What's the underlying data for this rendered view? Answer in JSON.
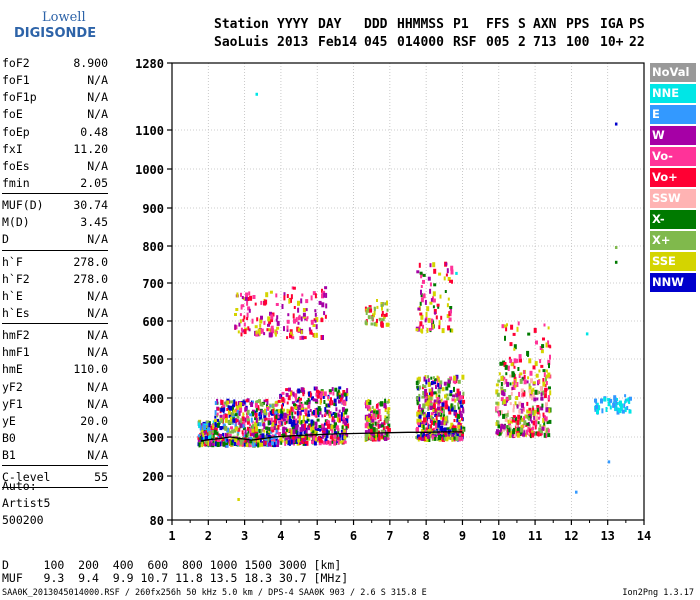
{
  "logo": {
    "line1": "Lowell",
    "line2": "DIGISONDE"
  },
  "header": {
    "row1": [
      "Station",
      "YYYY",
      "DAY",
      "DDD",
      "HHMMSS",
      "P1",
      "FFS",
      "S",
      "AXN",
      "PPS",
      "IGA",
      "PS"
    ],
    "row2": [
      "SaoLuis",
      "2013",
      "Feb14",
      "045",
      "014000",
      "RSF",
      "005",
      "2",
      "713",
      "100",
      "10+",
      "22"
    ]
  },
  "params": {
    "group1": [
      {
        "name": "foF2",
        "value": "8.900"
      },
      {
        "name": "foF1",
        "value": "N/A"
      },
      {
        "name": "foF1p",
        "value": "N/A"
      },
      {
        "name": "foE",
        "value": "N/A"
      },
      {
        "name": "foEp",
        "value": "0.48"
      },
      {
        "name": "fxI",
        "value": "11.20"
      },
      {
        "name": "foEs",
        "value": "N/A"
      },
      {
        "name": "fmin",
        "value": "2.05"
      }
    ],
    "group2": [
      {
        "name": "MUF(D)",
        "value": "30.74"
      },
      {
        "name": "M(D)",
        "value": "3.45"
      },
      {
        "name": "D",
        "value": "N/A"
      }
    ],
    "group3": [
      {
        "name": "h`F",
        "value": "278.0"
      },
      {
        "name": "h`F2",
        "value": "278.0"
      },
      {
        "name": "h`E",
        "value": "N/A"
      },
      {
        "name": "h`Es",
        "value": "N/A"
      }
    ],
    "group4": [
      {
        "name": "hmF2",
        "value": "N/A"
      },
      {
        "name": "hmF1",
        "value": "N/A"
      },
      {
        "name": "hmE",
        "value": "110.0"
      },
      {
        "name": "yF2",
        "value": "N/A"
      },
      {
        "name": "yF1",
        "value": "N/A"
      },
      {
        "name": "yE",
        "value": "20.0"
      },
      {
        "name": "B0",
        "value": "N/A"
      },
      {
        "name": "B1",
        "value": "N/A"
      }
    ],
    "group5": [
      {
        "name": "C-level",
        "value": "55"
      }
    ]
  },
  "auto": {
    "line1": "Auto:",
    "line2": "Artist5",
    "line3": "500200"
  },
  "footer": {
    "d_row": "D     100  200  400  600  800 1000 1500 3000 [km]",
    "muf_row": "MUF   9.3  9.4  9.9 10.7 11.8 13.5 18.3 30.7 [MHz]",
    "file_info": "SAA0K_2013045014000.RSF / 260fx256h 50 kHz 5.0 km / DPS-4 SAA0K 903 / 2.6 S 315.8 E",
    "version": "Ion2Png 1.3.17"
  },
  "legend": [
    {
      "label": "NoVal",
      "color": "#999999",
      "text_color": "#ffffff"
    },
    {
      "label": "NNE",
      "color": "#00e6e6",
      "text_color": "#ffffff"
    },
    {
      "label": "E",
      "color": "#3399ff",
      "text_color": "#ffffff"
    },
    {
      "label": "W",
      "color": "#a600a6",
      "text_color": "#ffffff"
    },
    {
      "label": "Vo-",
      "color": "#ff3399",
      "text_color": "#ffffff"
    },
    {
      "label": "Vo+",
      "color": "#ff0033",
      "text_color": "#ffffff"
    },
    {
      "label": "SSW",
      "color": "#ffb3b3",
      "text_color": "#ffffff"
    },
    {
      "label": "X-",
      "color": "#007a00",
      "text_color": "#ffffff"
    },
    {
      "label": "X+",
      "color": "#80b94c",
      "text_color": "#ffffff"
    },
    {
      "label": "SSE",
      "color": "#d4d400",
      "text_color": "#ffffff"
    },
    {
      "label": "NNW",
      "color": "#0000cc",
      "text_color": "#ffffff"
    }
  ],
  "chart_data": {
    "type": "scatter",
    "x_ticks": [
      "1",
      "2",
      "3",
      "4",
      "5",
      "6",
      "7",
      "8",
      "9",
      "10",
      "11",
      "12",
      "13",
      "14"
    ],
    "y_ticks": [
      "80",
      "200",
      "300",
      "400",
      "500",
      "600",
      "700",
      "800",
      "900",
      "1000",
      "1100",
      "1280"
    ],
    "xlim": [
      1,
      14
    ],
    "ylim": [
      80,
      1280
    ],
    "y_scale": "nonlinear",
    "grid": true,
    "trace": {
      "name": "h`F trace",
      "color": "#000000",
      "x": [
        1.8,
        2.0,
        2.3,
        2.6,
        2.9,
        3.2,
        3.5,
        3.8,
        4.1,
        4.5,
        5.0,
        5.5,
        6.0,
        6.5,
        7.0,
        7.5,
        8.0,
        8.5,
        9.0
      ],
      "y": [
        290,
        293,
        296,
        300,
        296,
        292,
        296,
        300,
        302,
        304,
        306,
        308,
        309,
        310,
        311,
        312,
        312,
        313,
        313
      ]
    },
    "clusters": [
      {
        "x": [
          1.7,
          2.15
        ],
        "y": [
          285,
          345
        ],
        "n": 160,
        "colors": [
          "NNE",
          "E",
          "W",
          "Vo-",
          "Vo+",
          "X-",
          "X+",
          "SSE",
          "NNW"
        ]
      },
      {
        "x": [
          2.15,
          3.9
        ],
        "y": [
          285,
          400
        ],
        "n": 520,
        "colors": [
          "W",
          "Vo-",
          "Vo+",
          "X-",
          "X+",
          "SSE",
          "NNW",
          "E"
        ]
      },
      {
        "x": [
          3.9,
          5.8
        ],
        "y": [
          290,
          430
        ],
        "n": 500,
        "colors": [
          "W",
          "Vo-",
          "Vo+",
          "X-",
          "SSE",
          "NNW"
        ]
      },
      {
        "x": [
          6.3,
          6.95
        ],
        "y": [
          300,
          400
        ],
        "n": 170,
        "colors": [
          "W",
          "Vo-",
          "Vo+",
          "SSE",
          "X-",
          "X+"
        ]
      },
      {
        "x": [
          7.7,
          9.0
        ],
        "y": [
          300,
          460
        ],
        "n": 460,
        "colors": [
          "W",
          "Vo-",
          "Vo+",
          "SSE",
          "X-",
          "X+",
          "NNW"
        ]
      },
      {
        "x": [
          9.9,
          11.4
        ],
        "y": [
          310,
          460
        ],
        "n": 320,
        "colors": [
          "SSE",
          "X+",
          "Vo-",
          "Vo+",
          "W",
          "SSW",
          "X-"
        ]
      },
      {
        "x": [
          2.7,
          3.9
        ],
        "y": [
          570,
          680
        ],
        "n": 90,
        "colors": [
          "W",
          "Vo-",
          "Vo+",
          "SSE"
        ]
      },
      {
        "x": [
          4.0,
          5.3
        ],
        "y": [
          560,
          700
        ],
        "n": 80,
        "colors": [
          "W",
          "Vo-",
          "Vo+",
          "SSE"
        ]
      },
      {
        "x": [
          6.3,
          6.95
        ],
        "y": [
          595,
          660
        ],
        "n": 50,
        "colors": [
          "SSE",
          "X+",
          "Vo+"
        ]
      },
      {
        "x": [
          7.7,
          8.7
        ],
        "y": [
          580,
          760
        ],
        "n": 90,
        "colors": [
          "W",
          "Vo-",
          "Vo+",
          "SSE",
          "X-"
        ]
      },
      {
        "x": [
          10.0,
          11.4
        ],
        "y": [
          460,
          600
        ],
        "n": 70,
        "colors": [
          "SSE",
          "Vo-",
          "Vo+",
          "X-"
        ]
      },
      {
        "x": [
          12.6,
          13.6
        ],
        "y": [
          370,
          410
        ],
        "n": 60,
        "colors": [
          "NNE",
          "E"
        ]
      }
    ]
  }
}
